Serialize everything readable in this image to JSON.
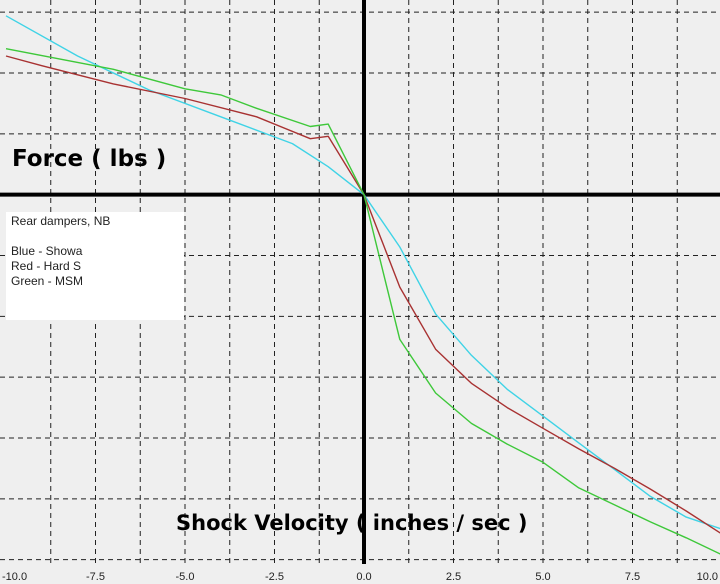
{
  "chart_data": {
    "type": "line",
    "xlabel": "Shock Velocity ( inches / sec )",
    "ylabel": "Force ( lbs )",
    "xlim": [
      -10.0,
      10.0
    ],
    "ylim": [
      -3.2,
      1.6
    ],
    "x_ticks": [
      -10.0,
      -7.5,
      -5.0,
      -2.5,
      0.0,
      2.5,
      5.0,
      7.5,
      10.0
    ],
    "x_tick_labels": [
      "-10.0",
      "-7.5",
      "-5.0",
      "-2.5",
      "0.0",
      "2.5",
      "5.0",
      "7.5",
      "10.0"
    ],
    "grid": true,
    "legend_position": "left",
    "legend": {
      "title": "Rear dampers, NB",
      "entries": [
        "Blue - Showa",
        "Red - Hard S",
        "Green - MSM"
      ]
    },
    "series": [
      {
        "name": "Blue - Showa",
        "color": "#3fd3e6",
        "points": [
          [
            -10,
            1.47
          ],
          [
            -8,
            1.14
          ],
          [
            -6,
            0.86
          ],
          [
            -4,
            0.64
          ],
          [
            -2,
            0.42
          ],
          [
            -1,
            0.23
          ],
          [
            0,
            0
          ],
          [
            1,
            -0.43
          ],
          [
            2,
            -0.98
          ],
          [
            3,
            -1.32
          ],
          [
            4,
            -1.6
          ],
          [
            5,
            -1.82
          ],
          [
            6,
            -2.04
          ],
          [
            7,
            -2.26
          ],
          [
            8,
            -2.48
          ],
          [
            9,
            -2.65
          ],
          [
            10,
            -2.75
          ]
        ]
      },
      {
        "name": "Red - Hard S",
        "color": "#a83232",
        "points": [
          [
            -10,
            1.14
          ],
          [
            -9,
            1.06
          ],
          [
            -7,
            0.91
          ],
          [
            -5,
            0.79
          ],
          [
            -3,
            0.64
          ],
          [
            -1.5,
            0.46
          ],
          [
            -1,
            0.48
          ],
          [
            0,
            0
          ],
          [
            1,
            -0.76
          ],
          [
            2,
            -1.27
          ],
          [
            3,
            -1.55
          ],
          [
            4,
            -1.75
          ],
          [
            5,
            -1.92
          ],
          [
            6,
            -2.09
          ],
          [
            7,
            -2.25
          ],
          [
            8,
            -2.42
          ],
          [
            9,
            -2.6
          ],
          [
            10,
            -2.79
          ]
        ]
      },
      {
        "name": "Green - MSM",
        "color": "#3ec83a",
        "points": [
          [
            -10,
            1.2
          ],
          [
            -7,
            1.03
          ],
          [
            -5,
            0.87
          ],
          [
            -4,
            0.82
          ],
          [
            -3,
            0.71
          ],
          [
            -1.5,
            0.56
          ],
          [
            -1,
            0.58
          ],
          [
            0,
            0
          ],
          [
            1,
            -1.19
          ],
          [
            2,
            -1.63
          ],
          [
            3,
            -1.88
          ],
          [
            4,
            -2.05
          ],
          [
            5,
            -2.2
          ],
          [
            6,
            -2.41
          ],
          [
            7,
            -2.55
          ],
          [
            8,
            -2.69
          ],
          [
            9,
            -2.82
          ],
          [
            10,
            -2.96
          ]
        ]
      }
    ]
  }
}
